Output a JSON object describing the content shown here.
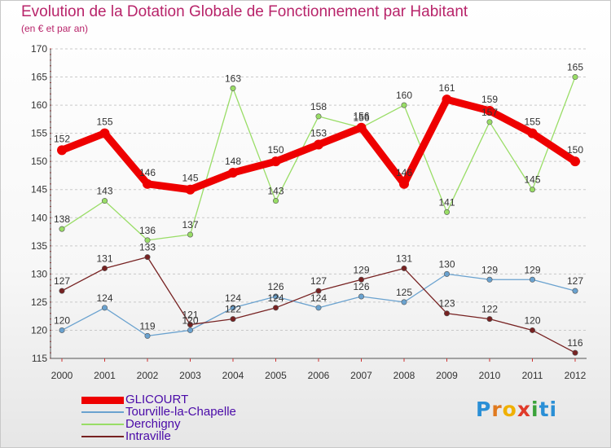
{
  "header": {
    "title": "Evolution de la Dotation Globale de Fonctionnement par Habitant",
    "subtitle": "(en € et par an)"
  },
  "logo": {
    "letters": [
      "P",
      "r",
      "o",
      "x",
      "i",
      "ti"
    ]
  },
  "chart_data": {
    "type": "line",
    "x": [
      "2000",
      "2001",
      "2002",
      "2003",
      "2004",
      "2005",
      "2006",
      "2007",
      "2008",
      "2009",
      "2010",
      "2011",
      "2012"
    ],
    "ylim": [
      115,
      170
    ],
    "yticks": [
      115,
      120,
      125,
      130,
      135,
      140,
      145,
      150,
      155,
      160,
      165,
      170
    ],
    "grid": "horizontal dashed",
    "legend": "bottom-left",
    "series": [
      {
        "name": "GLICOURT",
        "color": "#ee0000",
        "values": [
          152,
          155,
          146,
          145,
          148,
          150,
          153,
          156,
          146,
          161,
          159,
          155,
          150
        ]
      },
      {
        "name": "Tourville-la-Chapelle",
        "color": "#6aa2cf",
        "values": [
          120,
          124,
          119,
          120,
          124,
          126,
          124,
          126,
          125,
          130,
          129,
          129,
          127
        ]
      },
      {
        "name": "Derchigny",
        "color": "#99dd66",
        "values": [
          138,
          143,
          136,
          137,
          163,
          143,
          158,
          156,
          160,
          141,
          157,
          145,
          165
        ]
      },
      {
        "name": "Intraville",
        "color": "#772222",
        "values": [
          127,
          131,
          133,
          121,
          122,
          124,
          127,
          129,
          131,
          123,
          122,
          120,
          116
        ]
      }
    ]
  }
}
